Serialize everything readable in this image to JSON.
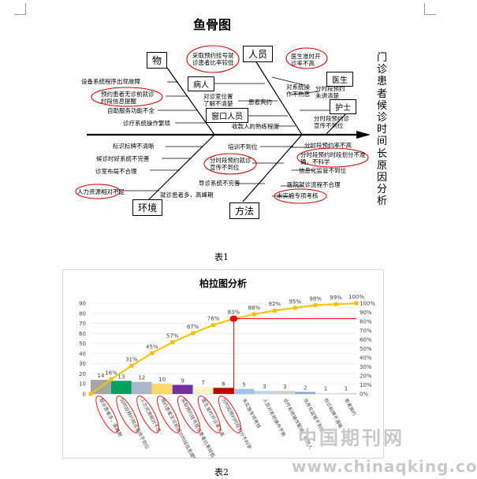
{
  "fishbone": {
    "title": "鱼骨图",
    "problem": "门诊患者候诊时间长原因分析",
    "categories": {
      "material": "物",
      "staff": "人员",
      "patient": "病人",
      "doctor": "医生",
      "window_staff": "窗口人员",
      "nurse": "护士",
      "environment": "环境",
      "method": "方法"
    },
    "causes": {
      "c1": "设备系统程序出现故障",
      "c2": "预约患者无诊前就诊时段信息提醒",
      "c3": "自助服务功能不全",
      "c4": "诊疗系统操作繁琐",
      "c5": "采取预约挂号就诊患者比率较低",
      "c6": "对诊室位置了解不清楚",
      "c7": "患者爽约",
      "c8": "收款人的熟练程度",
      "c9": "医生准时开诊率不高",
      "c10": "对系统操作不熟悉",
      "c11": "分时段预约未讲清楚",
      "c12": "分时段预约诊宣传不到位",
      "c13": "标识标牌不清晰",
      "c14": "候诊时好系统不完善",
      "c15": "诊室布局不合理",
      "c16": "人力资源相对不足",
      "c17": "就诊患者多，高峰期",
      "c18": "培训不到位",
      "c19": "分时段预约就诊宣传不到位",
      "c20": "导诊系统不完善",
      "c21": "分时段预约率不高",
      "c22": "分时段预约时段划分不准确，不科学",
      "c23": "信息化监管不到位",
      "c24": "医院就诊流程不合理",
      "c25": "未实施专项考核"
    }
  },
  "captions": {
    "table1": "表1",
    "table2": "表2"
  },
  "chart_data": {
    "type": "bar",
    "title": "柏拉图分析",
    "categories": [
      "就诊患者多，高峰期",
      "分时段预约就诊宣传不到位",
      "人力资源相对不足",
      "预约患者无诊前就诊时段信息提醒",
      "采取预约挂号就诊患者比率较低",
      "医生准时开诊率不高",
      "分时段预约时段划分不科学",
      "未实施专项考核",
      "人员对系统操作不熟",
      "诊疗系统操作繁琐，收款人",
      "信息化监管不到位",
      "标识标牌不清晰",
      "患者爽约"
    ],
    "values": [
      14,
      13,
      12,
      10,
      9,
      7,
      6,
      5,
      3,
      3,
      2,
      1,
      1
    ],
    "value_labels": [
      "14",
      "13",
      "12",
      "10",
      "9",
      "7",
      "6",
      "5",
      "3",
      "3",
      "2",
      "1",
      "1"
    ],
    "bar_colors": [
      "#a6a6a6",
      "#00a060",
      "#a9b7c8",
      "#ffd966",
      "#7030a0",
      "#fff2cc",
      "#c00000",
      "#9dc3e6",
      "#bdd7ee",
      "#d0cece",
      "#8ea9c8",
      "#e7e6e6",
      "#dbdbdb"
    ],
    "cumulative": {
      "x": [
        0,
        1,
        2,
        3,
        4,
        5,
        6,
        7,
        8,
        9,
        10,
        11,
        12,
        13
      ],
      "y": [
        0,
        16,
        31,
        45,
        57,
        67,
        76,
        83,
        88,
        92,
        95,
        98,
        99,
        100
      ],
      "labels": [
        "",
        "16%",
        "31%",
        "45%",
        "57%",
        "67%",
        "76%",
        "83%",
        "88%",
        "92%",
        "95%",
        "98%",
        "99%",
        "100%"
      ],
      "color": "#ffc000"
    },
    "highlight_point": {
      "x": 7,
      "y": 83,
      "color": "#ff0000"
    },
    "y_left": {
      "ticks": [
        0,
        10,
        20,
        30,
        40,
        50,
        60,
        70,
        80,
        90
      ],
      "ylim": [
        0,
        90
      ]
    },
    "y_right": {
      "ticks": [
        "0%",
        "10%",
        "20%",
        "30%",
        "40%",
        "50%",
        "60%",
        "70%",
        "80%",
        "90%",
        "100%"
      ]
    },
    "circled_categories": 7,
    "circle_color": "#ff0000"
  },
  "watermark": {
    "cn": "中国期刊网",
    "url": "www.chinaqking.com"
  }
}
